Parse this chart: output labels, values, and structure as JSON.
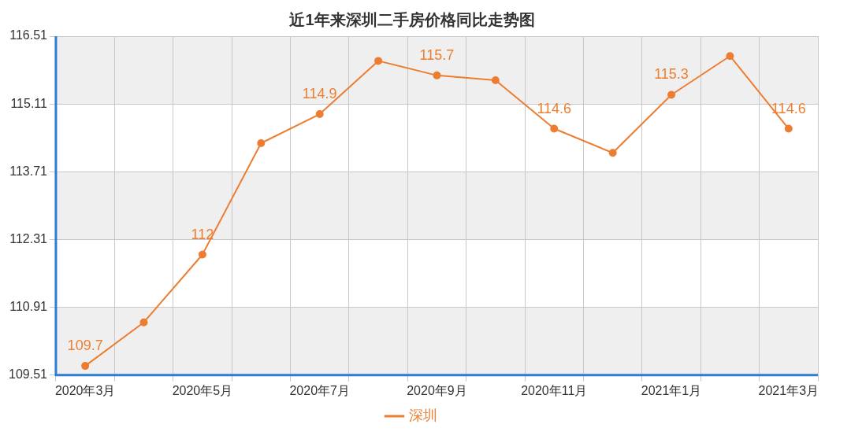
{
  "chart_data": {
    "type": "line",
    "title": "近1年来深圳二手房价格同比走势图",
    "categories": [
      "2020年3月",
      null,
      "2020年5月",
      null,
      "2020年7月",
      null,
      "2020年9月",
      null,
      "2020年11月",
      null,
      "2021年1月",
      null,
      "2021年3月"
    ],
    "series": [
      {
        "name": "深圳",
        "color": "#ed7d31",
        "values": [
          109.7,
          110.6,
          112,
          114.3,
          114.9,
          116.0,
          115.7,
          115.6,
          114.6,
          114.1,
          115.3,
          116.1,
          114.6
        ],
        "value_labels": [
          "109.7",
          null,
          "112",
          null,
          "114.9",
          null,
          "115.7",
          null,
          "114.6",
          null,
          "115.3",
          null,
          "114.6"
        ]
      }
    ],
    "ylim": [
      109.51,
      116.51
    ],
    "yticks": [
      109.51,
      110.91,
      112.31,
      113.71,
      115.11,
      116.51
    ],
    "grid": true,
    "legend": "bottom",
    "marker": "circle",
    "line_style": "solid"
  }
}
